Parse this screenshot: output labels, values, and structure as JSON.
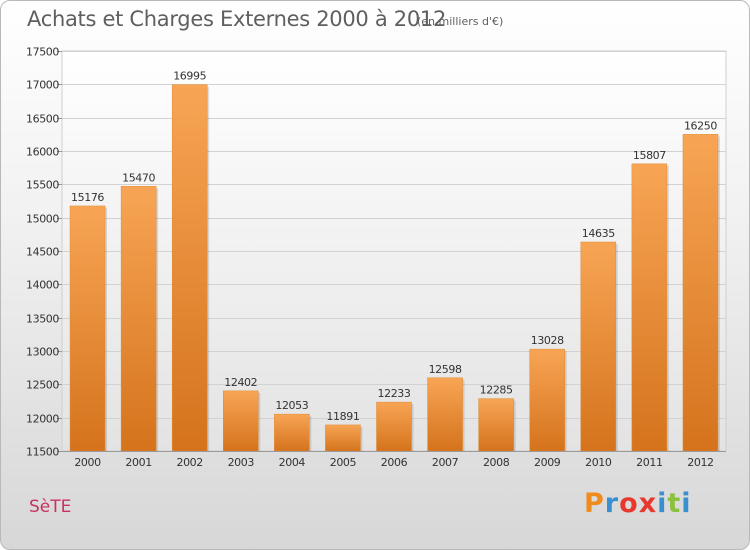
{
  "header": {
    "title": "Achats et Charges Externes 2000 à 2012",
    "subtitle": "(en milliers d'€)"
  },
  "footer": {
    "commune": "SèTE",
    "brand": "Proxiti",
    "brand_colors": [
      "#f08c1e",
      "#3a8fd0",
      "#e8382d",
      "#e8382d",
      "#3a8fd0",
      "#8cc13f",
      "#3a8fd0"
    ]
  },
  "chart_data": {
    "type": "bar",
    "categories": [
      "2000",
      "2001",
      "2002",
      "2003",
      "2004",
      "2005",
      "2006",
      "2007",
      "2008",
      "2009",
      "2010",
      "2011",
      "2012"
    ],
    "values": [
      15176,
      15470,
      16995,
      12402,
      12053,
      11891,
      12233,
      12598,
      12285,
      13028,
      14635,
      15807,
      16250
    ],
    "data_labels": [
      "15176",
      "15470",
      "16995",
      "12402",
      "12053",
      "11891",
      "12233",
      "12598",
      "12285",
      "13028",
      "14635",
      "15807",
      "16250"
    ],
    "ylim": [
      11500,
      17500
    ],
    "yticks": [
      11500,
      12000,
      12500,
      13000,
      13500,
      14000,
      14500,
      15000,
      15500,
      16000,
      16500,
      17000,
      17500
    ],
    "ytick_labels": [
      "11500",
      "12000",
      "12500",
      "13000",
      "13500",
      "14000",
      "14500",
      "15000",
      "15500",
      "16000",
      "16500",
      "17000",
      "17500"
    ],
    "grid": true,
    "bar_color_top": "#f7a555",
    "bar_color_bottom": "#d5731c"
  }
}
